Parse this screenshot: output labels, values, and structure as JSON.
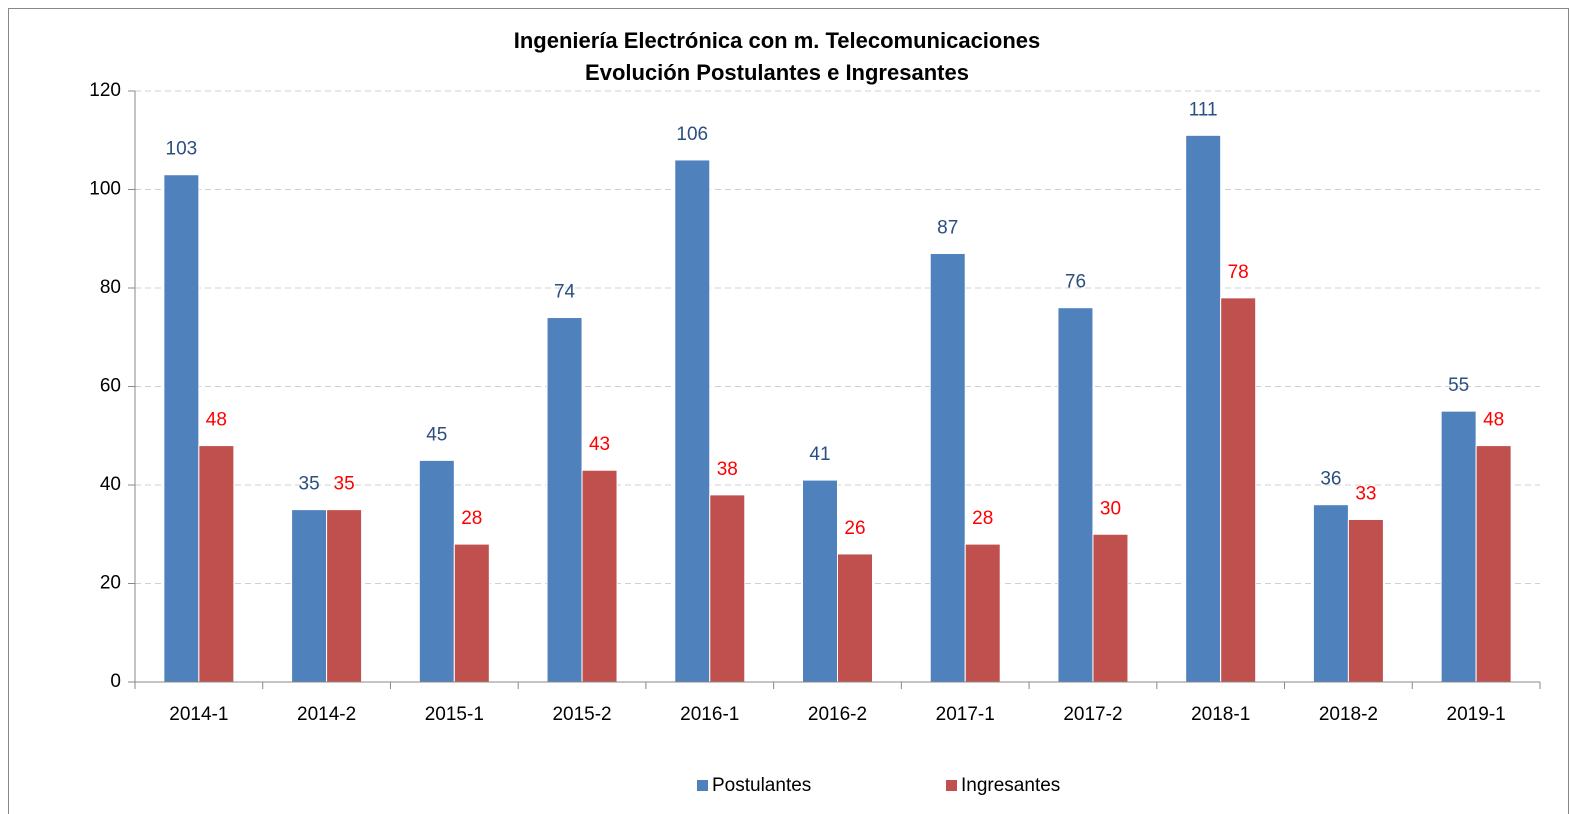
{
  "chart_data": {
    "type": "bar",
    "title": "Ingeniería Electrónica con m. Telecomunicaciones",
    "subtitle": "Evolución Postulantes e Ingresantes",
    "categories": [
      "2014-1",
      "2014-2",
      "2015-1",
      "2015-2",
      "2016-1",
      "2016-2",
      "2017-1",
      "2017-2",
      "2018-1",
      "2018-2",
      "2019-1"
    ],
    "series": [
      {
        "name": "Postulantes",
        "color": "#4f81bd",
        "label_color": "#2a4f80",
        "values": [
          103,
          35,
          45,
          74,
          106,
          41,
          87,
          76,
          111,
          36,
          55
        ]
      },
      {
        "name": "Ingresantes",
        "color": "#c0504d",
        "label_color": "#ff0000",
        "values": [
          48,
          35,
          28,
          43,
          38,
          26,
          28,
          30,
          78,
          33,
          48
        ]
      }
    ],
    "ylim": [
      0,
      120
    ],
    "yticks": [
      0,
      20,
      40,
      60,
      80,
      100,
      120
    ],
    "grid": true,
    "legend": "bottom"
  }
}
